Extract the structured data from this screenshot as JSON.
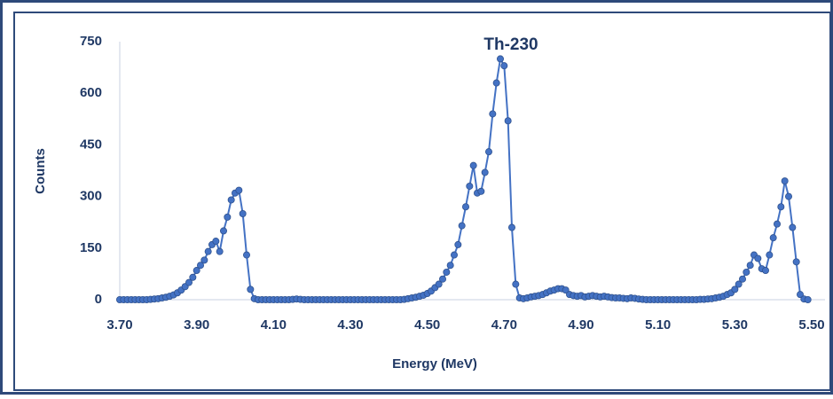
{
  "chart_data": {
    "type": "line",
    "title": "Th-230",
    "x_label": "Energy (MeV)",
    "y_label": "Counts",
    "color": "#4472c4",
    "markers": true,
    "grid": false,
    "xlim": [
      3.7,
      5.5
    ],
    "ylim": [
      0,
      750
    ],
    "xticks": [
      {
        "value": 3.7,
        "label": "3.70"
      },
      {
        "value": 3.9,
        "label": "3.90"
      },
      {
        "value": 4.1,
        "label": "4.10"
      },
      {
        "value": 4.3,
        "label": "4.30"
      },
      {
        "value": 4.5,
        "label": "4.50"
      },
      {
        "value": 4.7,
        "label": "4.70"
      },
      {
        "value": 4.9,
        "label": "4.90"
      },
      {
        "value": 5.1,
        "label": "5.10"
      },
      {
        "value": 5.3,
        "label": "5.30"
      },
      {
        "value": 5.5,
        "label": "5.50"
      }
    ],
    "yticks": [
      0,
      150,
      300,
      450,
      600,
      750
    ],
    "x": [
      3.7,
      3.71,
      3.72,
      3.73,
      3.74,
      3.75,
      3.76,
      3.77,
      3.78,
      3.79,
      3.8,
      3.81,
      3.82,
      3.83,
      3.84,
      3.85,
      3.86,
      3.87,
      3.88,
      3.89,
      3.9,
      3.91,
      3.92,
      3.93,
      3.94,
      3.95,
      3.96,
      3.97,
      3.98,
      3.99,
      4.0,
      4.01,
      4.02,
      4.03,
      4.04,
      4.05,
      4.06,
      4.07,
      4.08,
      4.09,
      4.1,
      4.11,
      4.12,
      4.13,
      4.14,
      4.15,
      4.16,
      4.17,
      4.18,
      4.19,
      4.2,
      4.21,
      4.22,
      4.23,
      4.24,
      4.25,
      4.26,
      4.27,
      4.28,
      4.29,
      4.3,
      4.31,
      4.32,
      4.33,
      4.34,
      4.35,
      4.36,
      4.37,
      4.38,
      4.39,
      4.4,
      4.41,
      4.42,
      4.43,
      4.44,
      4.45,
      4.46,
      4.47,
      4.48,
      4.49,
      4.5,
      4.51,
      4.52,
      4.53,
      4.54,
      4.55,
      4.56,
      4.57,
      4.58,
      4.59,
      4.6,
      4.61,
      4.62,
      4.63,
      4.64,
      4.65,
      4.66,
      4.67,
      4.68,
      4.69,
      4.7,
      4.71,
      4.72,
      4.73,
      4.74,
      4.75,
      4.76,
      4.77,
      4.78,
      4.79,
      4.8,
      4.81,
      4.82,
      4.83,
      4.84,
      4.85,
      4.86,
      4.87,
      4.88,
      4.89,
      4.9,
      4.91,
      4.92,
      4.93,
      4.94,
      4.95,
      4.96,
      4.97,
      4.98,
      4.99,
      5.0,
      5.01,
      5.02,
      5.03,
      5.04,
      5.05,
      5.06,
      5.07,
      5.08,
      5.09,
      5.1,
      5.11,
      5.12,
      5.13,
      5.14,
      5.15,
      5.16,
      5.17,
      5.18,
      5.19,
      5.2,
      5.21,
      5.22,
      5.23,
      5.24,
      5.25,
      5.26,
      5.27,
      5.28,
      5.29,
      5.3,
      5.31,
      5.32,
      5.33,
      5.34,
      5.35,
      5.36,
      5.37,
      5.38,
      5.39,
      5.4,
      5.41,
      5.42,
      5.43,
      5.44,
      5.45,
      5.46,
      5.47,
      5.48,
      5.49
    ],
    "values": [
      0,
      0,
      0,
      0,
      0,
      0,
      0,
      0,
      1,
      2,
      3,
      5,
      7,
      10,
      14,
      20,
      28,
      38,
      50,
      65,
      85,
      100,
      115,
      140,
      160,
      170,
      140,
      200,
      240,
      290,
      310,
      318,
      250,
      130,
      30,
      3,
      0,
      0,
      0,
      0,
      0,
      0,
      0,
      0,
      0,
      1,
      2,
      1,
      0,
      0,
      0,
      0,
      0,
      0,
      0,
      0,
      0,
      0,
      0,
      0,
      0,
      0,
      0,
      0,
      0,
      0,
      0,
      0,
      0,
      0,
      0,
      0,
      0,
      0,
      1,
      3,
      5,
      7,
      10,
      13,
      18,
      25,
      35,
      45,
      60,
      80,
      100,
      130,
      160,
      215,
      270,
      330,
      390,
      310,
      315,
      370,
      430,
      540,
      630,
      700,
      680,
      520,
      210,
      45,
      5,
      3,
      5,
      8,
      10,
      12,
      15,
      20,
      25,
      28,
      32,
      32,
      28,
      15,
      12,
      10,
      12,
      8,
      10,
      12,
      10,
      8,
      10,
      8,
      6,
      5,
      5,
      4,
      3,
      5,
      4,
      2,
      1,
      0,
      0,
      0,
      0,
      0,
      0,
      0,
      0,
      0,
      0,
      0,
      0,
      0,
      0,
      1,
      1,
      2,
      3,
      5,
      7,
      10,
      15,
      20,
      30,
      45,
      60,
      80,
      100,
      130,
      120,
      90,
      85,
      130,
      180,
      220,
      270,
      345,
      300,
      210,
      110,
      15,
      2,
      0
    ]
  }
}
